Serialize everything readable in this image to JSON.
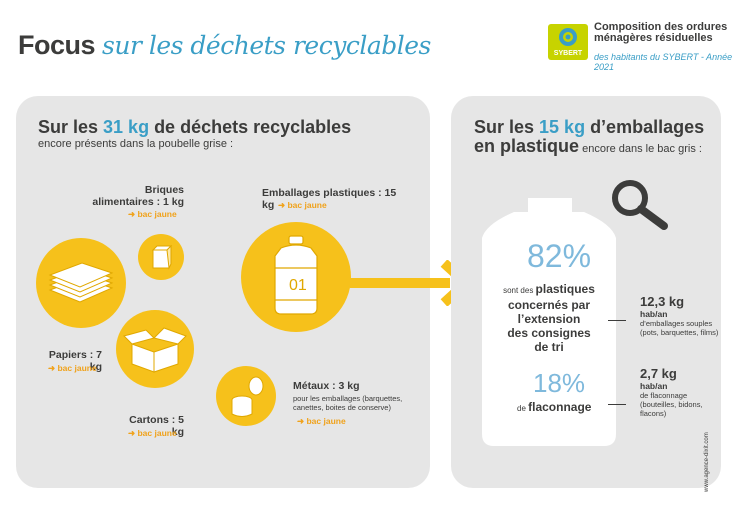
{
  "header": {
    "title_part1": "Focus",
    "title_part2": "sur les déchets recyclables",
    "logo_name": "SYBERT",
    "logo_title_l1": "Composition des ordures",
    "logo_title_l2": "ménagères résiduelles",
    "logo_sub": "des habitants du SYBERT - Année 2021"
  },
  "left": {
    "heading_a": "Sur les ",
    "heading_kg": "31 kg",
    "heading_b": " de déchets recyclables",
    "subheading": "encore présents dans la poubelle grise :",
    "items": {
      "briques_l1": "Briques",
      "briques_l2": "alimentaires : 1 kg",
      "emballages": "Emballages plastiques : 15 kg",
      "papiers": "Papiers : 7 kg",
      "cartons": "Cartons : 5 kg",
      "metaux": "Métaux : 3 kg",
      "metaux_note_l1": "pour les emballages (barquettes,",
      "metaux_note_l2": "canettes, boites de conserve)"
    },
    "bac": "bac jaune"
  },
  "right": {
    "heading_a": "Sur les ",
    "heading_kg": "15 kg",
    "heading_b": " d’emballages",
    "heading_c": "en plastique",
    "heading_d": " encore dans le bac gris  :",
    "pct1": "82%",
    "pct1_text_a": "sont des ",
    "pct1_text_b": "plastiques",
    "pct1_l2": "concernés par",
    "pct1_l3": "l’extension",
    "pct1_l4": "des consignes",
    "pct1_l5": "de tri",
    "pct2": "18%",
    "pct2_text_a": "de ",
    "pct2_text_b": "flaconnage",
    "stat1_value": "12,3 kg",
    "stat1_unit": "hab/an",
    "stat1_l1": "d’emballages souples",
    "stat1_l2": "(pots, barquettes, films)",
    "stat2_value": "2,7 kg",
    "stat2_unit": "hab/an",
    "stat2_l1": "de flaconnage",
    "stat2_l2": "(bouteilles, bidons,",
    "stat2_l3": "flacons)"
  },
  "credit": "www.agence-dixit.com",
  "colors": {
    "blue": "#3a9ec6",
    "yellow": "#f6c11b",
    "orange": "#f0a21b",
    "grey_panel": "#e6e6e6"
  }
}
